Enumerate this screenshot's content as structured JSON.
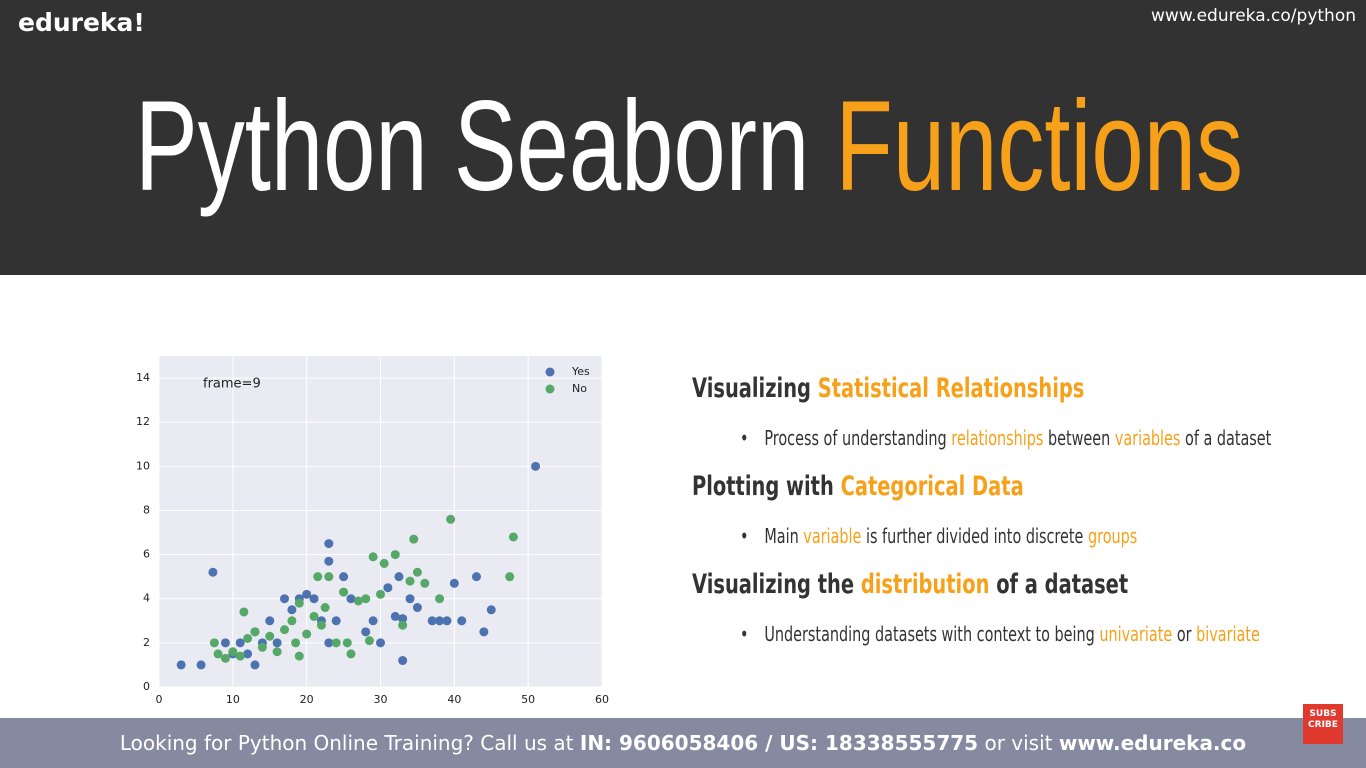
{
  "header": {
    "logo": "edureka!",
    "url": "www.edureka.co/python"
  },
  "title": {
    "parts": [
      {
        "text": "Python Seaborn ",
        "accent": false
      },
      {
        "text": "Functions",
        "accent": true
      }
    ]
  },
  "chart_data": {
    "type": "scatter",
    "annotation": "frame=9",
    "legend": "upper right",
    "grid": true,
    "xlim": [
      0,
      60
    ],
    "xticks": [
      0,
      10,
      20,
      30,
      40,
      50,
      60
    ],
    "ylim": [
      0,
      15
    ],
    "yticks": [
      0,
      2,
      4,
      6,
      8,
      10,
      12,
      14
    ],
    "series": [
      {
        "name": "Yes",
        "color": "#4c72b0",
        "x": [
          3,
          5.7,
          7.3,
          9,
          10,
          11,
          12,
          13,
          13,
          14,
          15,
          16,
          17,
          18,
          19,
          20,
          21,
          22,
          23,
          23,
          23,
          24,
          25,
          26,
          28,
          29,
          30,
          31,
          32,
          32.5,
          33,
          33,
          34,
          35,
          37,
          38,
          39,
          40,
          41,
          43,
          44,
          45,
          51
        ],
        "values": [
          1,
          1,
          5.2,
          2,
          1.5,
          2,
          1.5,
          1,
          2.5,
          2,
          3,
          2,
          4,
          3.5,
          4,
          4.2,
          4,
          3,
          6.5,
          5.7,
          2,
          3,
          5,
          4,
          2.5,
          3,
          2,
          4.5,
          3.2,
          5,
          3.1,
          1.2,
          4,
          3.6,
          3,
          3,
          3,
          4.7,
          3,
          5,
          2.5,
          3.5,
          10
        ]
      },
      {
        "name": "No",
        "color": "#55a868",
        "x": [
          7.5,
          8,
          9,
          10,
          11,
          11.5,
          12,
          13,
          14,
          15,
          16,
          17,
          18,
          18.5,
          19,
          19,
          20,
          21,
          21.5,
          22,
          22.5,
          23,
          24,
          25,
          25.5,
          26,
          27,
          28,
          28.5,
          29,
          30,
          30.5,
          32,
          33,
          34,
          34.5,
          35,
          36,
          38,
          39.5,
          47.5,
          48
        ],
        "values": [
          2,
          1.5,
          1.3,
          1.6,
          1.4,
          3.4,
          2.2,
          2.5,
          1.8,
          2.3,
          1.6,
          2.6,
          3,
          2,
          1.4,
          3.8,
          2.4,
          3.2,
          5,
          2.8,
          3.6,
          5,
          2,
          4.3,
          2,
          1.5,
          3.9,
          4,
          2.1,
          5.9,
          4.2,
          5.6,
          6,
          2.8,
          4.8,
          6.7,
          5.2,
          4.7,
          4,
          7.6,
          5,
          6.8
        ]
      }
    ]
  },
  "sections": [
    {
      "heading": [
        {
          "text": "Visualizing ",
          "accent": false
        },
        {
          "text": "Statistical Relationships",
          "accent": true
        }
      ],
      "bullet": [
        {
          "text": "Process of understanding ",
          "accent": false
        },
        {
          "text": "relationships",
          "accent": true
        },
        {
          "text": " between ",
          "accent": false
        },
        {
          "text": "variables",
          "accent": true
        },
        {
          "text": " of a dataset",
          "accent": false
        }
      ]
    },
    {
      "heading": [
        {
          "text": "Plotting with ",
          "accent": false
        },
        {
          "text": "Categorical Data",
          "accent": true
        }
      ],
      "bullet": [
        {
          "text": "Main ",
          "accent": false
        },
        {
          "text": "variable",
          "accent": true
        },
        {
          "text": " is further divided into discrete ",
          "accent": false
        },
        {
          "text": "groups",
          "accent": true
        }
      ]
    },
    {
      "heading": [
        {
          "text": "Visualizing the ",
          "accent": false
        },
        {
          "text": "distribution",
          "accent": true
        },
        {
          "text": " of a dataset",
          "accent": false
        }
      ],
      "bullet": [
        {
          "text": "Understanding datasets with context to being ",
          "accent": false
        },
        {
          "text": "univariate",
          "accent": true
        },
        {
          "text": " or ",
          "accent": false
        },
        {
          "text": "bivariate",
          "accent": true
        }
      ]
    }
  ],
  "footer": {
    "parts": [
      {
        "text": "Looking for Python Online Training? Call us at ",
        "bold": false
      },
      {
        "text": "IN: 9606058406 / US: 18338555775",
        "bold": true
      },
      {
        "text": " or visit ",
        "bold": false
      },
      {
        "text": "www.edureka.co",
        "bold": true
      }
    ]
  },
  "badge": {
    "lines": [
      "SUBS",
      "CRIBE"
    ]
  }
}
